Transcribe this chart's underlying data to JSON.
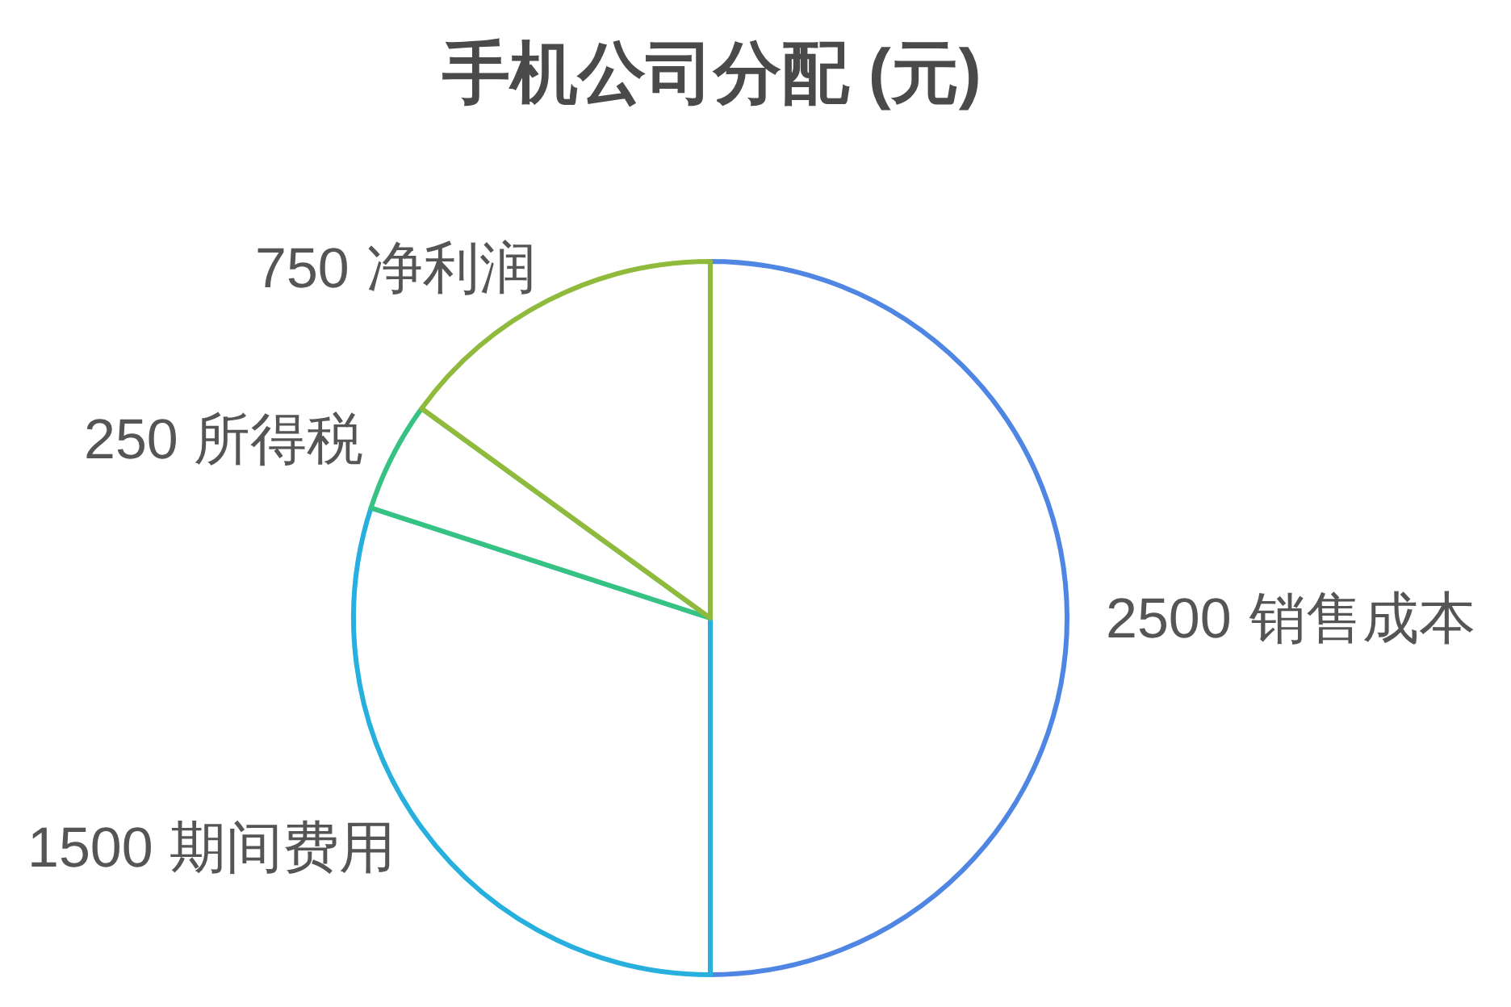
{
  "chart_data": {
    "type": "pie",
    "title": "手机公司分配 (元)",
    "categories": [
      "销售成本",
      "期间费用",
      "所得税",
      "净利润"
    ],
    "values": [
      2500,
      1500,
      250,
      750
    ],
    "colors": [
      "#4f86e3",
      "#27b0dd",
      "#35c283",
      "#8fba3c"
    ],
    "data_labels": true
  }
}
